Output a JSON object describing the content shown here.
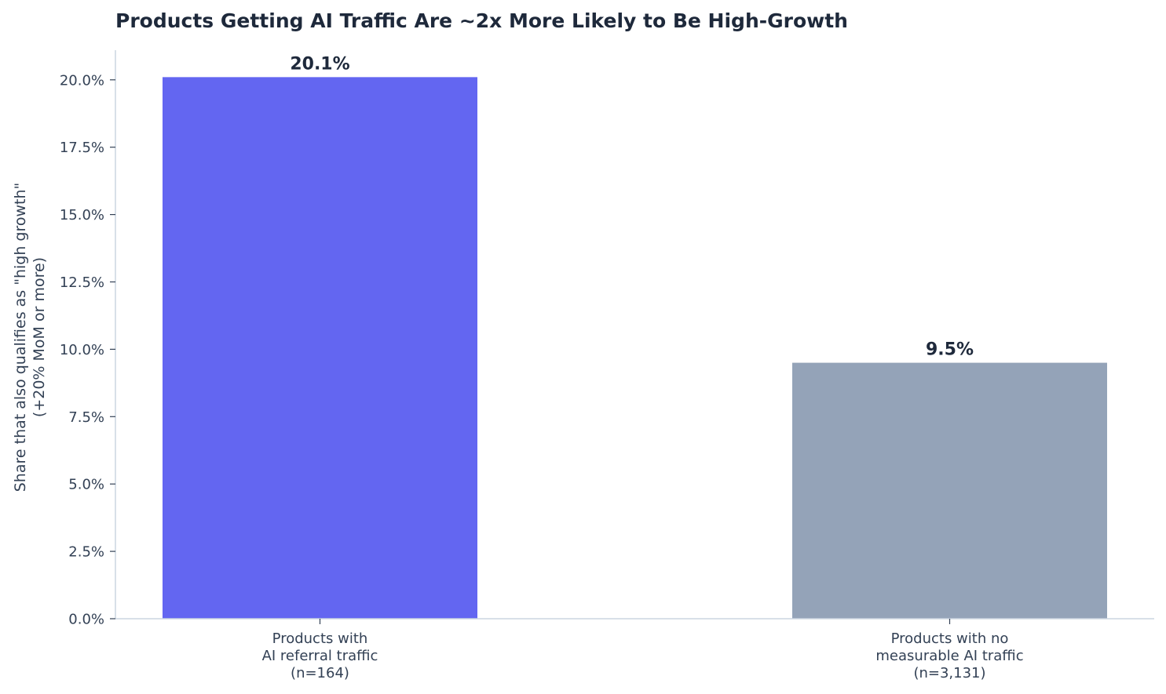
{
  "chart_data": {
    "type": "bar",
    "title": "Products Getting AI Traffic Are ~2x More Likely to Be High-Growth",
    "ylabel": [
      "Share that also qualifies as \"high growth\"",
      "(+20% MoM or more)"
    ],
    "xlabel": "",
    "categories": [
      [
        "Products with",
        "AI referral traffic",
        "(n=164)"
      ],
      [
        "Products with no",
        "measurable AI traffic",
        "(n=3,131)"
      ]
    ],
    "values": [
      20.1,
      9.5
    ],
    "data_labels": [
      "20.1%",
      "9.5%"
    ],
    "bar_colors": [
      "#6366f1",
      "#94a3b8"
    ],
    "ylim": [
      0,
      21.1
    ],
    "yticks": [
      0,
      2.5,
      5,
      7.5,
      10,
      12.5,
      15,
      17.5,
      20
    ],
    "ytick_labels": [
      "0.0%",
      "2.5%",
      "5.0%",
      "7.5%",
      "10.0%",
      "12.5%",
      "15.0%",
      "17.5%",
      "20.0%"
    ],
    "grid": false,
    "legend": "none"
  }
}
